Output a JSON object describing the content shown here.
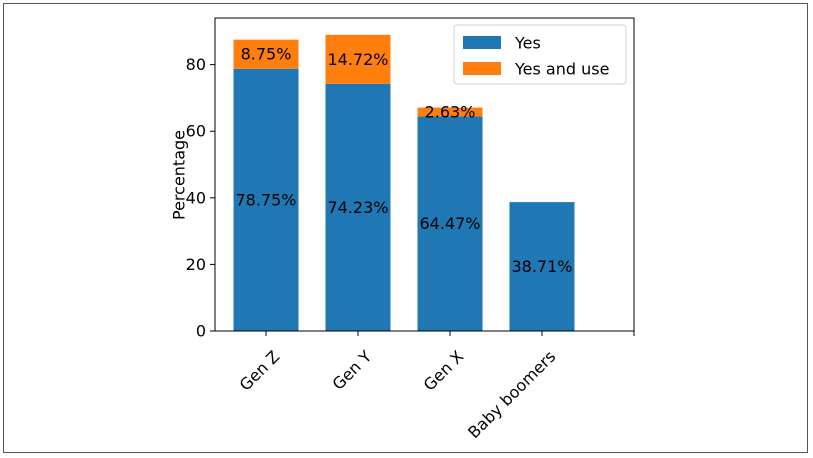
{
  "chart_data": {
    "type": "bar",
    "stacked": true,
    "categories": [
      "Gen Z",
      "Gen Y",
      "Gen X",
      "Baby boomers"
    ],
    "series": [
      {
        "name": "Yes",
        "color": "#1f77b4",
        "values": [
          78.75,
          74.23,
          64.47,
          38.71
        ],
        "labels": [
          "78.75%",
          "74.23%",
          "64.47%",
          "38.71%"
        ]
      },
      {
        "name": "Yes and use",
        "color": "#ff7f0e",
        "values": [
          8.75,
          14.72,
          2.63,
          null
        ],
        "labels": [
          "8.75%",
          "14.72%",
          "2.63%",
          ""
        ]
      }
    ],
    "xlabel": "",
    "ylabel": "Percentage",
    "ylim": [
      0,
      94
    ],
    "yticks": [
      0,
      20,
      40,
      60,
      80
    ],
    "ytick_labels": [
      "0",
      "20",
      "40",
      "60",
      "80"
    ],
    "legend_position": "top-right",
    "grid": false
  }
}
